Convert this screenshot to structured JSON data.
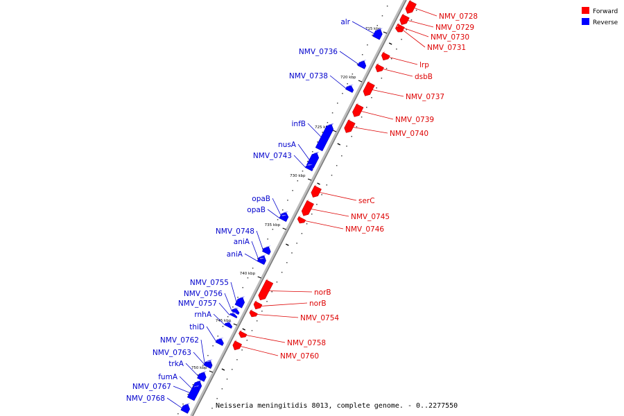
{
  "caption": "Neisseria meningitidis 8013, complete genome. - 0..2277550",
  "legend": {
    "forward": {
      "label": "Forward",
      "color": "#ff0000"
    },
    "reverse": {
      "label": "Reverse",
      "color": "#0000ff"
    }
  },
  "ticks": [
    "715 kbp",
    "720 kbp",
    "725 kbp",
    "730 kbp",
    "735 kbp",
    "740 kbp",
    "745 kbp",
    "750 kbp"
  ],
  "forward_genes": [
    "NMV_0728",
    "NMV_0729",
    "NMV_0730",
    "NMV_0731",
    "lrp",
    "dsbB",
    "NMV_0737",
    "NMV_0739",
    "NMV_0740",
    "serC",
    "NMV_0745",
    "NMV_0746",
    "norB",
    "norB",
    "NMV_0754",
    "NMV_0758",
    "NMV_0760"
  ],
  "reverse_genes": [
    "alr",
    "NMV_0736",
    "NMV_0738",
    "infB",
    "nusA",
    "NMV_0743",
    "opaB",
    "opaB",
    "NMV_0748",
    "aniA",
    "aniA",
    "NMV_0755",
    "NMV_0756",
    "NMV_0757",
    "rnhA",
    "thiD",
    "NMV_0762",
    "NMV_0763",
    "trkA",
    "fumA",
    "NMV_0767",
    "NMV_0768"
  ]
}
